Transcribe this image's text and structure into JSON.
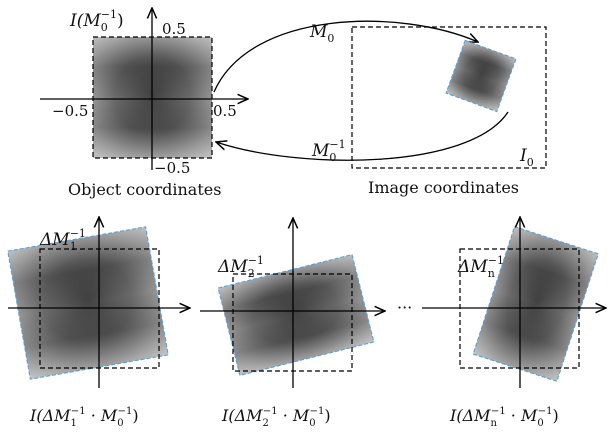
{
  "object_panel": {
    "title_prefix": "I(M",
    "title_sub": "0",
    "title_sup": "−1",
    "title_suffix": ")",
    "tick_top": "0.5",
    "tick_left": "−0.5",
    "tick_right": "0.5",
    "tick_bottom": "−0.5",
    "caption": "Object coordinates"
  },
  "image_panel": {
    "caption": "Image coordinates",
    "frame_label": "I",
    "frame_sub": "0"
  },
  "mapping": {
    "forward_label": "M",
    "forward_sub": "0",
    "inverse_label": "M",
    "inverse_sub": "0",
    "inverse_sup": "−1"
  },
  "bottom_panels": [
    {
      "label_prefix": "ΔM",
      "label_sub": "1",
      "label_sup": "−1",
      "caption_a": "I(ΔM",
      "caption_sub1": "1",
      "caption_sup1": "−1",
      "caption_b": " · M",
      "caption_sub2": "0",
      "caption_sup2": "−1",
      "caption_c": ")"
    },
    {
      "label_prefix": "ΔM",
      "label_sub": "2",
      "label_sup": "−1",
      "caption_a": "I(ΔM",
      "caption_sub1": "2",
      "caption_sup1": "−1",
      "caption_b": " · M",
      "caption_sub2": "0",
      "caption_sup2": "−1",
      "caption_c": ")"
    },
    {
      "label_prefix": "ΔM",
      "label_sub": "n",
      "label_sup": "−1",
      "caption_a": "I(ΔM",
      "caption_sub1": "n",
      "caption_sup1": "−1",
      "caption_b": " · M",
      "caption_sub2": "0",
      "caption_sup2": "−1",
      "caption_c": ")"
    }
  ],
  "ellipsis": "···",
  "colors": {
    "outline_blue": "#5aa0d6",
    "texture_dark": "#2a2a2a",
    "texture_light": "#bdbdbd"
  }
}
